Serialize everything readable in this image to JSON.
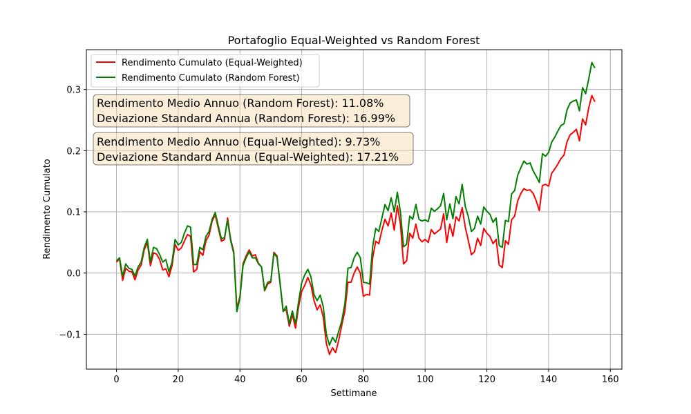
{
  "chart_data": {
    "type": "line",
    "title": "Portafoglio Equal-Weighted vs Random Forest",
    "xlabel": "Settimane",
    "ylabel": "Rendimento Cumulato",
    "xlim": [
      -9.75,
      163.75
    ],
    "ylim": [
      -0.157,
      0.365
    ],
    "xticks": [
      0,
      20,
      40,
      60,
      80,
      100,
      120,
      140,
      160
    ],
    "xtick_labels": [
      "0",
      "20",
      "40",
      "60",
      "80",
      "100",
      "120",
      "140",
      "160"
    ],
    "yticks": [
      -0.1,
      0.0,
      0.1,
      0.2,
      0.3
    ],
    "ytick_labels": [
      "−0.1",
      "0.0",
      "0.1",
      "0.2",
      "0.3"
    ],
    "grid": true,
    "legend_position": "upper-left",
    "x": [
      0,
      1,
      2,
      3,
      4,
      5,
      6,
      7,
      8,
      9,
      10,
      11,
      12,
      13,
      14,
      15,
      16,
      17,
      18,
      19,
      20,
      21,
      22,
      23,
      24,
      25,
      26,
      27,
      28,
      29,
      30,
      31,
      32,
      33,
      34,
      35,
      36,
      37,
      38,
      39,
      40,
      41,
      42,
      43,
      44,
      45,
      46,
      47,
      48,
      49,
      50,
      51,
      52,
      53,
      54,
      55,
      56,
      57,
      58,
      59,
      60,
      61,
      62,
      63,
      64,
      65,
      66,
      67,
      68,
      69,
      70,
      71,
      72,
      73,
      74,
      75,
      76,
      77,
      78,
      79,
      80,
      81,
      82,
      83,
      84,
      85,
      86,
      87,
      88,
      89,
      90,
      91,
      92,
      93,
      94,
      95,
      96,
      97,
      98,
      99,
      100,
      101,
      102,
      103,
      104,
      105,
      106,
      107,
      108,
      109,
      110,
      111,
      112,
      113,
      114,
      115,
      116,
      117,
      118,
      119,
      120,
      121,
      122,
      123,
      124,
      125,
      126,
      127,
      128,
      129,
      130,
      131,
      132,
      133,
      134,
      135,
      136,
      137,
      138,
      139,
      140,
      141,
      142,
      143,
      144,
      145,
      146,
      147,
      148,
      149,
      150,
      151,
      152,
      153,
      154,
      155
    ],
    "series": [
      {
        "name": "Rendimento Cumulato (Equal-Weighted)",
        "color": "#ff0000",
        "values": [
          0.018,
          0.023,
          -0.012,
          0.008,
          0.003,
          0.002,
          -0.011,
          0.005,
          0.013,
          0.038,
          0.05,
          0.012,
          0.033,
          0.031,
          0.022,
          0.005,
          0.007,
          -0.006,
          0.012,
          0.047,
          0.037,
          0.041,
          0.052,
          0.063,
          0.06,
          0.002,
          0.006,
          0.035,
          0.029,
          0.053,
          0.062,
          0.085,
          0.095,
          0.073,
          0.052,
          0.055,
          0.09,
          0.055,
          0.035,
          -0.058,
          -0.038,
          0.015,
          0.028,
          0.038,
          0.028,
          0.03,
          0.016,
          0.01,
          -0.029,
          -0.018,
          -0.015,
          0.034,
          0.028,
          -0.018,
          -0.062,
          -0.06,
          -0.087,
          -0.068,
          -0.09,
          -0.055,
          -0.03,
          -0.02,
          -0.007,
          -0.02,
          -0.045,
          -0.06,
          -0.052,
          -0.072,
          -0.115,
          -0.133,
          -0.122,
          -0.13,
          -0.11,
          -0.085,
          -0.062,
          -0.015,
          -0.015,
          0.0,
          0.01,
          0.0,
          -0.038,
          -0.035,
          -0.036,
          0.025,
          0.052,
          0.048,
          0.07,
          0.088,
          0.077,
          0.098,
          0.07,
          0.11,
          0.08,
          0.015,
          0.02,
          0.065,
          0.057,
          0.08,
          0.057,
          0.051,
          0.055,
          0.05,
          0.071,
          0.064,
          0.068,
          0.072,
          0.097,
          0.05,
          0.08,
          0.06,
          0.092,
          0.085,
          0.107,
          0.075,
          0.053,
          0.03,
          0.035,
          0.057,
          0.045,
          0.073,
          0.065,
          0.06,
          0.048,
          0.055,
          0.013,
          0.009,
          0.053,
          0.047,
          0.087,
          0.093,
          0.118,
          0.13,
          0.138,
          0.135,
          0.136,
          0.13,
          0.118,
          0.102,
          0.143,
          0.145,
          0.142,
          0.163,
          0.17,
          0.178,
          0.187,
          0.193,
          0.215,
          0.226,
          0.23,
          0.235,
          0.216,
          0.252,
          0.242,
          0.27,
          0.29,
          0.28
        ]
      },
      {
        "name": "Rendimento Cumulato (Random Forest)",
        "color": "#008000",
        "values": [
          0.02,
          0.025,
          -0.005,
          0.015,
          0.008,
          0.006,
          -0.005,
          0.01,
          0.018,
          0.042,
          0.055,
          0.018,
          0.042,
          0.04,
          0.03,
          0.018,
          0.022,
          0.002,
          0.018,
          0.055,
          0.046,
          0.05,
          0.065,
          0.077,
          0.075,
          0.014,
          0.014,
          0.042,
          0.038,
          0.06,
          0.068,
          0.088,
          0.099,
          0.077,
          0.056,
          0.058,
          0.086,
          0.053,
          0.032,
          -0.063,
          -0.041,
          0.012,
          0.025,
          0.035,
          0.025,
          0.025,
          0.015,
          0.01,
          -0.028,
          -0.015,
          -0.013,
          0.032,
          0.026,
          -0.016,
          -0.063,
          -0.054,
          -0.083,
          -0.062,
          -0.083,
          -0.047,
          -0.016,
          -0.003,
          0.006,
          -0.006,
          -0.035,
          -0.045,
          -0.036,
          -0.055,
          -0.1,
          -0.118,
          -0.105,
          -0.113,
          -0.095,
          -0.078,
          -0.05,
          0.008,
          0.009,
          0.025,
          0.034,
          0.025,
          -0.015,
          -0.016,
          -0.018,
          0.043,
          0.073,
          0.068,
          0.09,
          0.112,
          0.102,
          0.123,
          0.1,
          0.132,
          0.1,
          0.043,
          0.047,
          0.093,
          0.088,
          0.112,
          0.088,
          0.085,
          0.087,
          0.084,
          0.106,
          0.101,
          0.105,
          0.11,
          0.13,
          0.087,
          0.113,
          0.089,
          0.125,
          0.113,
          0.145,
          0.109,
          0.092,
          0.068,
          0.073,
          0.093,
          0.08,
          0.108,
          0.101,
          0.096,
          0.083,
          0.09,
          0.045,
          0.042,
          0.086,
          0.084,
          0.129,
          0.135,
          0.16,
          0.172,
          0.183,
          0.178,
          0.18,
          0.167,
          0.158,
          0.148,
          0.195,
          0.191,
          0.197,
          0.214,
          0.222,
          0.232,
          0.241,
          0.244,
          0.267,
          0.278,
          0.281,
          0.283,
          0.265,
          0.303,
          0.293,
          0.317,
          0.344,
          0.335
        ]
      }
    ],
    "annotations": [
      {
        "lines": [
          "Rendimento Medio Annuo (Random Forest): 11.08%",
          "Deviazione Standard Annua (Random Forest): 16.99%"
        ],
        "box_color": "#f5deb3"
      },
      {
        "lines": [
          "Rendimento Medio Annuo (Equal-Weighted): 9.73%",
          "Deviazione Standard Annua (Equal-Weighted): 17.21%"
        ],
        "box_color": "#f5deb3"
      }
    ]
  }
}
